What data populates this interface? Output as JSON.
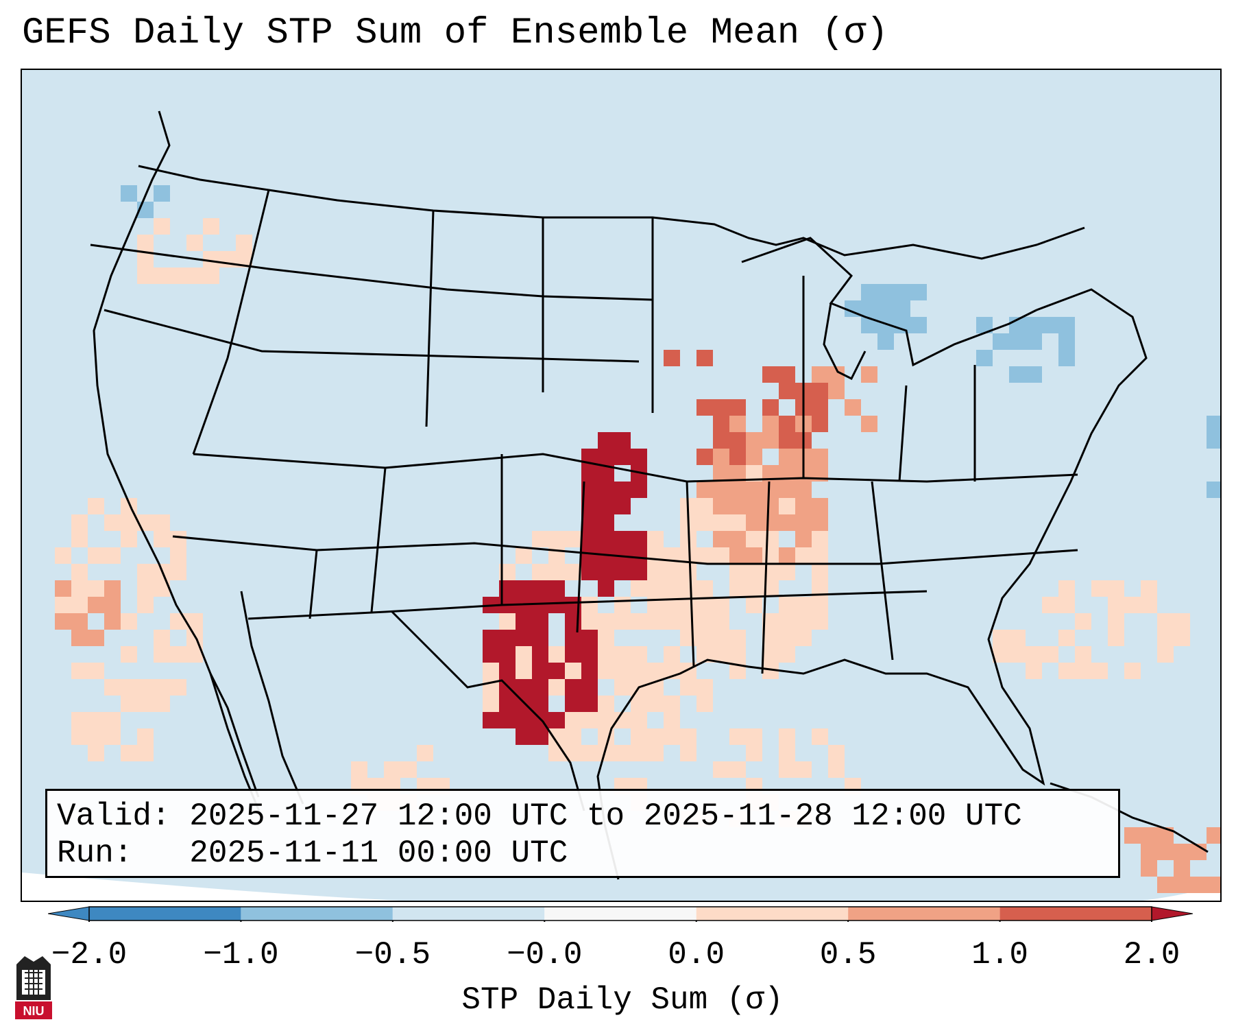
{
  "title": "GEFS Daily STP Sum of Ensemble Mean (σ)",
  "info": {
    "valid": "Valid: 2025-11-27 12:00 UTC to 2025-11-28 12:00 UTC",
    "run": "Run:   2025-11-11 00:00 UTC"
  },
  "colorbar": {
    "label": "STP Daily Sum (σ)",
    "ticks": [
      "−2.0",
      "−1.0",
      "−0.5",
      "−0.0",
      "0.0",
      "0.5",
      "1.0",
      "2.0"
    ],
    "colors": [
      "#3e88c1",
      "#8fc1de",
      "#d1e5f0",
      "#f7f7f7",
      "#fddbc7",
      "#f0a285",
      "#d65f4e",
      "#b2182b"
    ]
  },
  "colors": {
    "background_field": "#d1e5f0",
    "low_negative": "#8fc1de",
    "low_positive": "#fddbc7",
    "mid_positive": "#f0a285",
    "high_positive": "#d65f4e",
    "extreme_positive": "#b2182b"
  },
  "logo": {
    "icon": "niu-logo-icon",
    "text": "NIU"
  }
}
